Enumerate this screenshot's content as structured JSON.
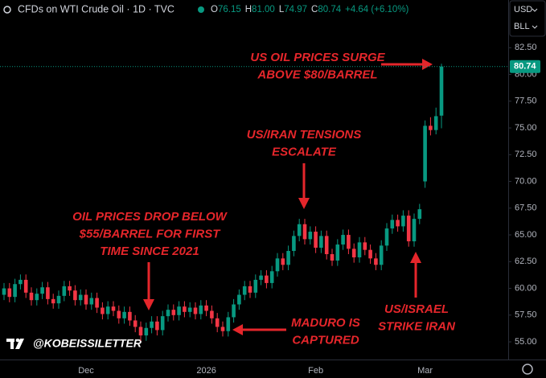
{
  "chart_data": {
    "type": "candlestick",
    "title": "CFDs on WTI Crude Oil · 1D · TVC",
    "quote": [
      {
        "label": "O",
        "value": "76.15"
      },
      {
        "label": "H",
        "value": "81.00"
      },
      {
        "label": "L",
        "value": "74.97"
      },
      {
        "label": "C",
        "value": "80.74"
      }
    ],
    "change": "+4.64 (+6.10%)",
    "currency": "USD",
    "unit": "BLL",
    "watermark": "@KOBEISSILETTER",
    "up_color": "#089981",
    "down_color": "#f23645",
    "categories": [
      null,
      null,
      null,
      null,
      null,
      null,
      null,
      null,
      null,
      null,
      null,
      null,
      null,
      null,
      null,
      "Dec",
      null,
      null,
      null,
      null,
      null,
      null,
      null,
      null,
      null,
      null,
      null,
      null,
      null,
      null,
      null,
      null,
      null,
      null,
      null,
      null,
      null,
      "2026",
      null,
      null,
      null,
      null,
      null,
      null,
      null,
      null,
      null,
      null,
      null,
      null,
      null,
      null,
      null,
      null,
      null,
      null,
      null,
      "Feb",
      null,
      null,
      null,
      null,
      null,
      null,
      null,
      null,
      null,
      null,
      null,
      null,
      null,
      null,
      null,
      null,
      null,
      null,
      null,
      "Mar",
      null,
      null,
      null
    ],
    "open": [
      59.4,
      60.0,
      59.2,
      60.4,
      60.8,
      59.6,
      58.9,
      59.5,
      60.1,
      59.0,
      58.6,
      59.3,
      60.2,
      59.8,
      58.9,
      59.4,
      58.5,
      59.1,
      58.2,
      57.6,
      58.3,
      57.9,
      57.2,
      57.8,
      57.0,
      56.4,
      55.6,
      56.3,
      56.9,
      56.1,
      57.4,
      58.0,
      57.5,
      58.3,
      57.8,
      58.2,
      57.6,
      58.4,
      57.9,
      57.2,
      56.4,
      56.0,
      57.3,
      58.5,
      59.4,
      60.2,
      59.6,
      60.8,
      61.2,
      60.5,
      61.6,
      62.8,
      62.2,
      63.5,
      64.9,
      66.0,
      64.6,
      65.3,
      63.8,
      64.9,
      63.2,
      62.6,
      64.1,
      65.0,
      63.7,
      62.9,
      64.3,
      63.6,
      62.8,
      62.2,
      64.0,
      65.6,
      66.4,
      65.8,
      66.8,
      64.4,
      66.5,
      70.0,
      75.2,
      74.8,
      76.15
    ],
    "high": [
      60.5,
      60.5,
      60.9,
      61.3,
      61.3,
      60.1,
      60.0,
      60.6,
      60.6,
      59.5,
      59.8,
      60.7,
      60.7,
      60.3,
      59.9,
      59.9,
      59.6,
      59.6,
      58.7,
      58.8,
      58.8,
      58.4,
      58.3,
      58.3,
      57.5,
      56.9,
      56.8,
      57.4,
      57.4,
      57.9,
      58.5,
      58.5,
      58.8,
      58.8,
      58.7,
      58.7,
      58.9,
      58.9,
      58.4,
      57.7,
      56.9,
      57.8,
      59.0,
      59.9,
      60.7,
      60.7,
      61.3,
      61.7,
      61.7,
      62.1,
      63.3,
      63.3,
      64.0,
      65.4,
      66.5,
      66.5,
      65.8,
      65.8,
      65.4,
      65.4,
      63.7,
      64.6,
      65.5,
      65.5,
      64.2,
      64.8,
      64.8,
      64.1,
      63.3,
      64.5,
      66.1,
      66.9,
      66.9,
      67.3,
      67.3,
      67.0,
      67.9,
      75.7,
      76.0,
      76.9,
      81.0
    ],
    "low": [
      58.9,
      58.7,
      58.7,
      59.9,
      59.1,
      58.4,
      58.4,
      59.0,
      58.5,
      58.1,
      58.1,
      58.8,
      59.3,
      58.4,
      58.4,
      58.0,
      58.0,
      57.7,
      57.1,
      57.1,
      57.4,
      56.7,
      56.7,
      56.5,
      55.9,
      55.1,
      55.1,
      55.8,
      55.6,
      55.6,
      56.9,
      57.0,
      57.0,
      57.3,
      57.3,
      57.1,
      57.1,
      57.4,
      56.7,
      55.9,
      55.5,
      55.5,
      56.8,
      58.0,
      58.9,
      59.1,
      59.1,
      60.3,
      60.0,
      60.0,
      61.1,
      61.7,
      61.7,
      63.0,
      64.4,
      64.1,
      64.1,
      63.3,
      63.3,
      62.7,
      62.1,
      62.1,
      63.6,
      63.2,
      62.4,
      62.4,
      63.1,
      62.3,
      61.7,
      61.7,
      63.5,
      65.1,
      65.3,
      65.3,
      63.9,
      63.9,
      66.0,
      69.4,
      74.3,
      74.4,
      74.97
    ],
    "close": [
      60.0,
      59.2,
      60.4,
      60.8,
      59.6,
      58.9,
      59.5,
      60.1,
      59.0,
      58.6,
      59.3,
      60.2,
      59.8,
      58.9,
      59.4,
      58.5,
      59.1,
      58.2,
      57.6,
      58.3,
      57.9,
      57.2,
      57.8,
      57.0,
      56.4,
      55.6,
      56.3,
      56.9,
      56.1,
      57.4,
      58.0,
      57.5,
      58.3,
      57.8,
      58.2,
      57.6,
      58.4,
      57.9,
      57.2,
      56.4,
      56.0,
      57.3,
      58.5,
      59.4,
      60.2,
      59.6,
      60.8,
      61.2,
      60.5,
      61.6,
      62.8,
      62.2,
      63.5,
      64.9,
      66.0,
      64.6,
      65.3,
      63.8,
      64.9,
      63.2,
      62.6,
      64.1,
      65.0,
      63.7,
      62.9,
      64.3,
      63.6,
      62.8,
      62.2,
      64.0,
      65.6,
      66.4,
      65.8,
      66.8,
      64.4,
      66.5,
      67.4,
      75.2,
      74.8,
      76.1,
      80.74
    ],
    "ylim": [
      53.35,
      86.96
    ],
    "yticks": [
      {
        "value": 55,
        "label": "55.00"
      },
      {
        "value": 57.5,
        "label": "57.50"
      },
      {
        "value": 60,
        "label": "60.00"
      },
      {
        "value": 62.5,
        "label": "62.50"
      },
      {
        "value": 65,
        "label": "65.00"
      },
      {
        "value": 67.5,
        "label": "67.50"
      },
      {
        "value": 70,
        "label": "70.00"
      },
      {
        "value": 72.5,
        "label": "72.50"
      },
      {
        "value": 75,
        "label": "75.00"
      },
      {
        "value": 77.5,
        "label": "77.50"
      },
      {
        "value": 80,
        "label": "80.00"
      },
      {
        "value": 82.5,
        "label": "82.50"
      }
    ],
    "annotations": [
      {
        "lines": [
          "US OIL PRICES SURGE",
          "ABOVE $80/BARREL"
        ]
      },
      {
        "lines": [
          "US/IRAN TENSIONS",
          "ESCALATE"
        ]
      },
      {
        "lines": [
          "OIL PRICES DROP BELOW",
          "$55/BARREL FOR FIRST",
          "TIME SINCE 2021"
        ]
      },
      {
        "lines": [
          "MADURO IS",
          "CAPTURED"
        ]
      },
      {
        "lines": [
          "US/ISRAEL",
          "STRIKE IRAN"
        ]
      }
    ]
  }
}
